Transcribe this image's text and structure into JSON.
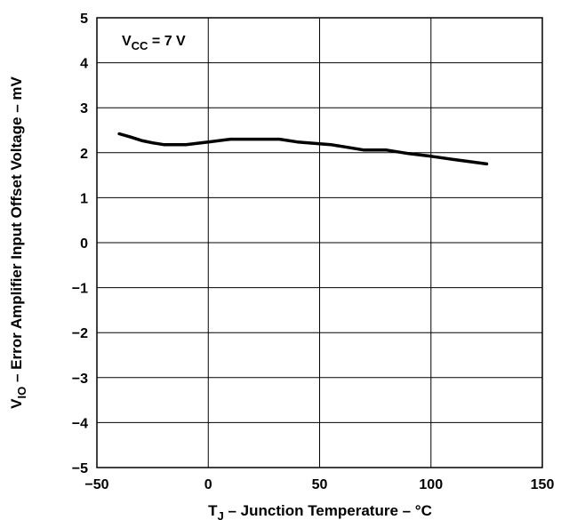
{
  "chart_data": {
    "type": "line",
    "title": "",
    "xlabel": {
      "main": "T",
      "sub": "J",
      "rest": " – Junction Temperature – °C"
    },
    "ylabel": {
      "main": "V",
      "sub": "IO",
      "rest": " – Error Amplifier Input Offset Voltage – mV"
    },
    "xlim": [
      -50,
      150
    ],
    "ylim": [
      -5,
      5
    ],
    "xticks": [
      -50,
      0,
      50,
      100,
      150
    ],
    "yticks": [
      -5,
      -4,
      -3,
      -2,
      -1,
      0,
      1,
      2,
      3,
      4,
      5
    ],
    "xtick_labels": [
      "−50",
      "0",
      "50",
      "100",
      "150"
    ],
    "ytick_labels": [
      "−5",
      "−4",
      "−3",
      "−2",
      "−1",
      "0",
      "1",
      "2",
      "3",
      "4",
      "5"
    ],
    "grid": true,
    "annotation": {
      "main": "V",
      "sub": "CC",
      "rest": " = 7 V"
    },
    "series": [
      {
        "x": [
          -40,
          -35,
          -30,
          -25,
          -20,
          -10,
          0,
          10,
          20,
          32,
          40,
          55,
          70,
          80,
          90,
          100,
          110,
          125
        ],
        "y": [
          2.42,
          2.35,
          2.27,
          2.22,
          2.18,
          2.18,
          2.24,
          2.3,
          2.3,
          2.3,
          2.24,
          2.18,
          2.06,
          2.06,
          1.98,
          1.92,
          1.85,
          1.75
        ]
      }
    ],
    "line_color": "#000000"
  }
}
